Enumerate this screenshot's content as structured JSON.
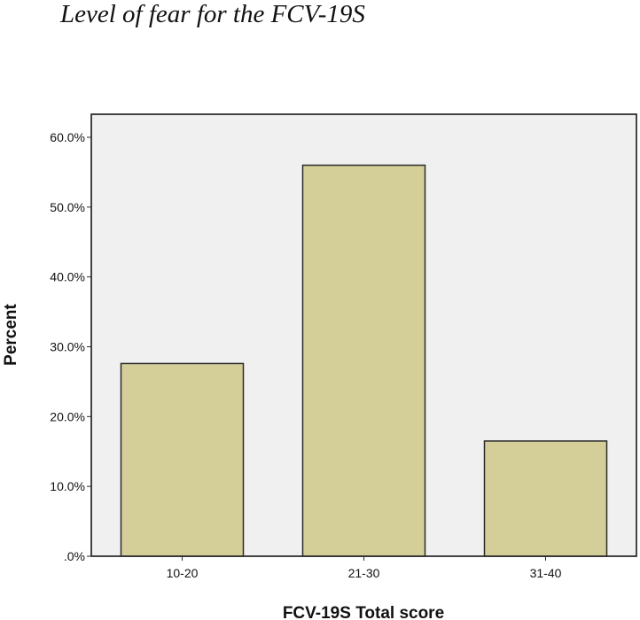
{
  "figure": {
    "title": "Level of fear for the FCV-19S"
  },
  "chart_data": {
    "type": "bar",
    "categories": [
      "10-20",
      "21-30",
      "31-40"
    ],
    "values": [
      27.6,
      56.0,
      16.5
    ],
    "title": "",
    "xlabel": "FCV-19S Total score",
    "ylabel": "Percent",
    "ylim": [
      0,
      60
    ],
    "yticks": [
      0,
      10,
      20,
      30,
      40,
      50,
      60
    ],
    "ytick_labels": [
      ".0%",
      "10.0%",
      "20.0%",
      "30.0%",
      "40.0%",
      "50.0%",
      "60.0%"
    ],
    "grid": false,
    "legend": "none",
    "colors": {
      "bar_fill": "#d4cf98",
      "bar_stroke": "#2a2a2a",
      "plot_background": "#f0f0f0",
      "axis": "#2a2a2a"
    }
  }
}
